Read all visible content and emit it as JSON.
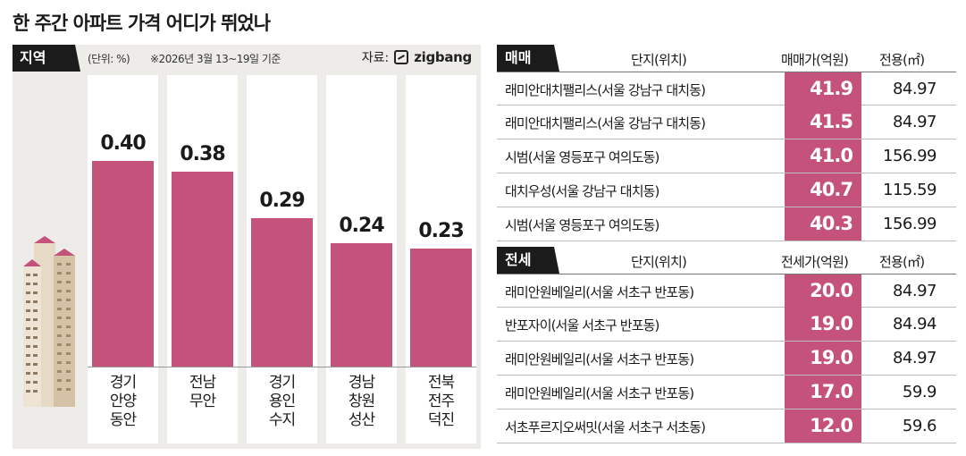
{
  "title": "한 주간 아파트 가격 어디가 뛰었나",
  "left_panel": {
    "tag": "지역",
    "unit": "(단위: %)",
    "note": "※2026년 3월 13~19일 기준",
    "source_label": "자료:",
    "source_brand": "zigbang"
  },
  "chart_data": {
    "type": "bar",
    "title": "",
    "categories": [
      [
        "경기",
        "안양",
        "동안"
      ],
      [
        "전남",
        "무안"
      ],
      [
        "경기",
        "용인",
        "수지"
      ],
      [
        "경남",
        "창원",
        "성산"
      ],
      [
        "전북",
        "전주",
        "덕진"
      ]
    ],
    "values": [
      0.4,
      0.38,
      0.29,
      0.24,
      0.23
    ],
    "value_labels": [
      "0.40",
      "0.38",
      "0.29",
      "0.24",
      "0.23"
    ],
    "ylabel": "(단위: %)",
    "ylim": [
      0,
      0.5
    ],
    "bar_color": "#c4527a",
    "grid": false
  },
  "sale_table": {
    "tag": "매매",
    "headers": {
      "name": "단지(위치)",
      "price": "매매가(억원)",
      "area": "전용(㎡)"
    },
    "rows": [
      {
        "name": "래미안대치팰리스(서울 강남구 대치동)",
        "price": "41.9",
        "area": "84.97"
      },
      {
        "name": "래미안대치팰리스(서울 강남구 대치동)",
        "price": "41.5",
        "area": "84.97"
      },
      {
        "name": "시범(서울 영등포구 여의도동)",
        "price": "41.0",
        "area": "156.99"
      },
      {
        "name": "대치우성(서울 강남구 대치동)",
        "price": "40.7",
        "area": "115.59"
      },
      {
        "name": "시범(서울 영등포구 여의도동)",
        "price": "40.3",
        "area": "156.99"
      }
    ]
  },
  "jeonse_table": {
    "tag": "전세",
    "headers": {
      "name": "단지(위치)",
      "price": "전세가(억원)",
      "area": "전용(㎡)"
    },
    "rows": [
      {
        "name": "래미안원베일리(서울 서초구 반포동)",
        "price": "20.0",
        "area": "84.97"
      },
      {
        "name": "반포자이(서울 서초구 반포동)",
        "price": "19.0",
        "area": "84.94"
      },
      {
        "name": "래미안원베일리(서울 서초구 반포동)",
        "price": "19.0",
        "area": "84.97"
      },
      {
        "name": "래미안원베일리(서울 서초구 반포동)",
        "price": "17.0",
        "area": "59.9"
      },
      {
        "name": "서초푸르지오써밋(서울 서초구 서초동)",
        "price": "12.0",
        "area": "59.6"
      }
    ]
  },
  "colors": {
    "accent": "#c4527a",
    "panel": "#eeece9",
    "tag_bg": "#1b1b1b"
  }
}
